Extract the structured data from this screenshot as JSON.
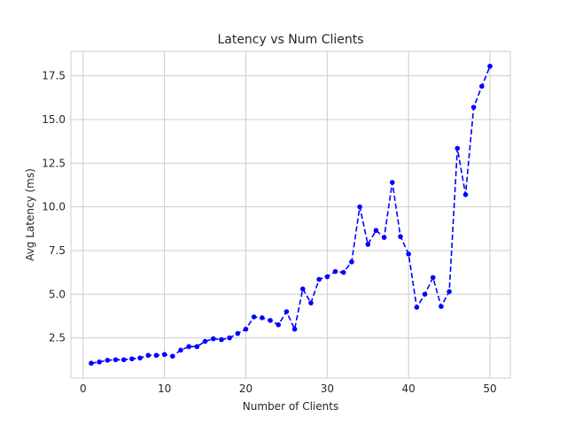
{
  "chart_data": {
    "type": "line",
    "title": "Latency vs Num Clients",
    "xlabel": "Number of Clients",
    "ylabel": "Avg Latency (ms)",
    "xlim": [
      -1.5,
      52.5
    ],
    "ylim": [
      0.2,
      18.9
    ],
    "xticks": [
      0,
      10,
      20,
      30,
      40,
      50
    ],
    "yticks": [
      2.5,
      5.0,
      7.5,
      10.0,
      12.5,
      15.0,
      17.5
    ],
    "ytick_labels": [
      "2.5",
      "5.0",
      "7.5",
      "10.0",
      "12.5",
      "15.0",
      "17.5"
    ],
    "grid": true,
    "line_style": "dashed",
    "marker": "circle",
    "color": "#0000ff",
    "series": [
      {
        "x": [
          1,
          2,
          3,
          4,
          5,
          6,
          7,
          8,
          9,
          10,
          11,
          12,
          13,
          14,
          15,
          16,
          17,
          18,
          19,
          20,
          21,
          22,
          23,
          24,
          25,
          26,
          27,
          28,
          29,
          30,
          31,
          32,
          33,
          34,
          35,
          36,
          37,
          38,
          39,
          40,
          41,
          42,
          43,
          44,
          45,
          46,
          47,
          48,
          49,
          50
        ],
        "y": [
          1.05,
          1.12,
          1.22,
          1.25,
          1.25,
          1.3,
          1.35,
          1.5,
          1.5,
          1.55,
          1.45,
          1.8,
          2.0,
          2.0,
          2.3,
          2.45,
          2.4,
          2.5,
          2.75,
          3.0,
          3.7,
          3.65,
          3.5,
          3.25,
          4.0,
          3.0,
          5.3,
          4.5,
          5.85,
          6.0,
          6.3,
          6.25,
          6.85,
          10.0,
          7.85,
          8.65,
          8.25,
          11.4,
          8.3,
          7.3,
          4.25,
          5.0,
          5.95,
          4.3,
          5.15,
          13.35,
          10.7,
          15.7,
          16.9,
          18.05
        ]
      }
    ]
  }
}
